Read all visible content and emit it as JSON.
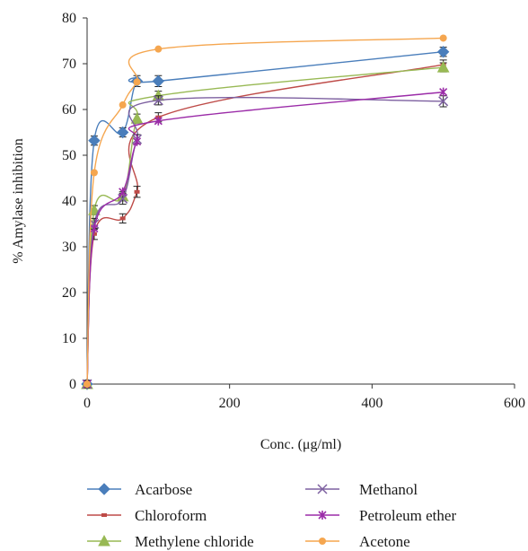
{
  "chart_data": {
    "type": "line",
    "xlabel": "Conc. (μg/ml)",
    "ylabel": "% Amylase inhibition",
    "xlim": [
      0,
      600
    ],
    "ylim": [
      0,
      80
    ],
    "xticks": [
      0,
      200,
      400,
      600
    ],
    "yticks": [
      0,
      10,
      20,
      30,
      40,
      50,
      60,
      70,
      80
    ],
    "grid": false,
    "legend_position": "bottom",
    "series": [
      {
        "name": "Acarbose",
        "color": "#4a7ebb",
        "marker": "diamond",
        "x": [
          0,
          10,
          50,
          70,
          100,
          500
        ],
        "y": [
          0,
          53.2,
          55.0,
          66.2,
          66.2,
          72.6
        ],
        "err": [
          0.8,
          1.0,
          1.0,
          1.2,
          1.2,
          1.0
        ]
      },
      {
        "name": "Chloroform",
        "color": "#be4b48",
        "marker": "dash",
        "x": [
          0,
          10,
          50,
          70,
          100,
          500
        ],
        "y": [
          0,
          32.8,
          36.2,
          42.0,
          58.3,
          69.8
        ],
        "err": [
          0.8,
          1.2,
          1.0,
          1.2,
          1.0,
          1.0
        ]
      },
      {
        "name": "Methylene chloride",
        "color": "#98b954",
        "marker": "triangle",
        "x": [
          0,
          10,
          50,
          70,
          100,
          500
        ],
        "y": [
          0,
          38.0,
          41.0,
          58.0,
          63.0,
          69.2
        ],
        "err": [
          0.8,
          1.0,
          1.0,
          1.0,
          1.0,
          1.0
        ]
      },
      {
        "name": "Methanol",
        "color": "#7d60a0",
        "marker": "x",
        "x": [
          0,
          10,
          50,
          70,
          100,
          500
        ],
        "y": [
          0,
          35.0,
          40.5,
          53.5,
          62.0,
          61.8
        ],
        "err": [
          0.8,
          1.2,
          1.2,
          1.0,
          1.0,
          1.2
        ]
      },
      {
        "name": "Petroleum ether",
        "color": "#9b2ca8",
        "marker": "star",
        "x": [
          0,
          10,
          50,
          70,
          100,
          500
        ],
        "y": [
          0,
          34.0,
          42.0,
          53.0,
          57.5,
          63.8
        ],
        "err": [
          0,
          0,
          0,
          0,
          0,
          0
        ]
      },
      {
        "name": "Acetone",
        "color": "#f5a64f",
        "marker": "circle",
        "x": [
          0,
          10,
          50,
          70,
          100,
          500
        ],
        "y": [
          0,
          46.2,
          61.0,
          66.0,
          73.2,
          75.6
        ],
        "err": [
          0,
          0,
          0,
          0,
          0,
          0
        ]
      }
    ]
  }
}
